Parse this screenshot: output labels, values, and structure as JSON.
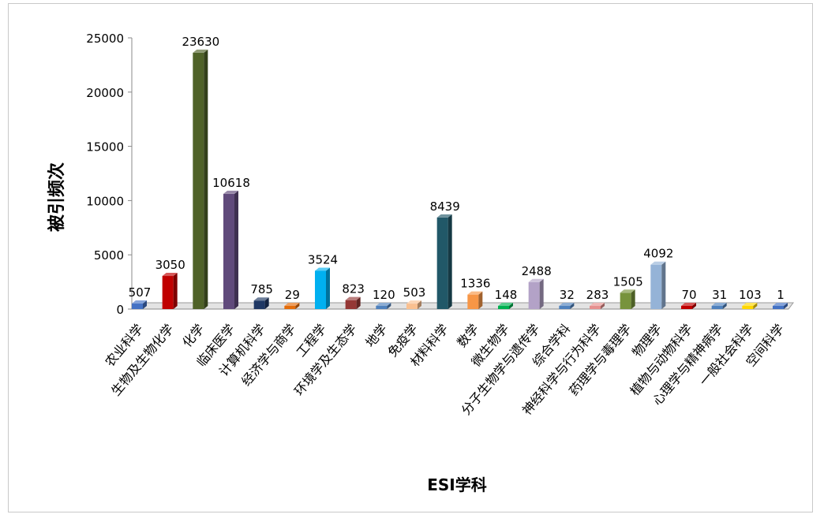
{
  "chart_data": {
    "type": "bar",
    "title": "",
    "xlabel": "ESI学科",
    "ylabel": "被引频次",
    "ylim": [
      0,
      25000
    ],
    "yticks": [
      0,
      5000,
      10000,
      15000,
      20000,
      25000
    ],
    "grid": false,
    "legend": "none",
    "categories": [
      "农业科学",
      "生物及生物化学",
      "化学",
      "临床医学",
      "计算机科学",
      "经济学与商学",
      "工程学",
      "环境学及生态学",
      "地学",
      "免疫学",
      "材料科学",
      "数学",
      "微生物学",
      "分子生物学与遗传学",
      "综合学科",
      "神经科学与行为科学",
      "药理学与毒理学",
      "物理学",
      "植物与动物科学",
      "心理学与精神病学",
      "一般社会科学",
      "空间科学"
    ],
    "values": [
      507,
      3050,
      23630,
      10618,
      785,
      29,
      3524,
      823,
      120,
      503,
      8439,
      1336,
      148,
      2488,
      32,
      283,
      1505,
      4092,
      70,
      31,
      103,
      1
    ],
    "colors": [
      "#4472c4",
      "#c00000",
      "#4f6228",
      "#604a7b",
      "#1f3864",
      "#e46c0a",
      "#00b0f0",
      "#953735",
      "#4f81bd",
      "#fac090",
      "#215868",
      "#f79646",
      "#00b050",
      "#b3a2c7",
      "#4f81bd",
      "#e6908f",
      "#77933c",
      "#95b3d7",
      "#c00000",
      "#4f81bd",
      "#ffd700",
      "#4472c4"
    ]
  }
}
